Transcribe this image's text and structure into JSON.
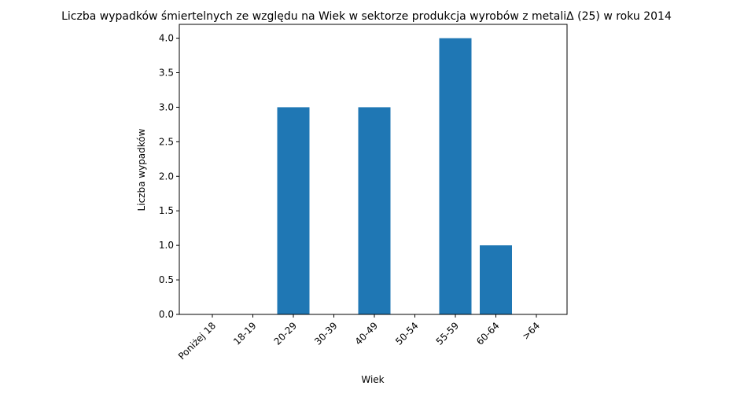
{
  "chart_data": {
    "type": "bar",
    "title": "Liczba wypadków śmiertelnych ze względu na Wiek w sektorze produkcja wyrobów z metaliΔ (25) w roku 2014",
    "xlabel": "Wiek",
    "ylabel": "Liczba wypadków",
    "categories": [
      "Poniżej 18",
      "18-19",
      "20-29",
      "30-39",
      "40-49",
      "50-54",
      "55-59",
      "60-64",
      ">64"
    ],
    "values": [
      0,
      0,
      3,
      0,
      3,
      0,
      4,
      1,
      0
    ],
    "ylim": [
      0,
      4.2
    ],
    "yticks": [
      "0.0",
      "0.5",
      "1.0",
      "1.5",
      "2.0",
      "2.5",
      "3.0",
      "3.5",
      "4.0"
    ],
    "bar_color": "#1f77b4",
    "grid": false,
    "legend": "none"
  }
}
